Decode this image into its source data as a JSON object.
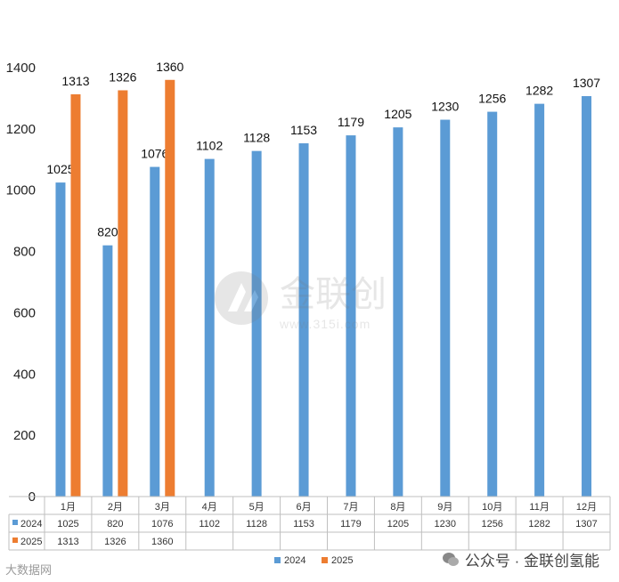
{
  "chart_data": {
    "type": "bar",
    "categories": [
      "1月",
      "2月",
      "3月",
      "4月",
      "5月",
      "6月",
      "7月",
      "8月",
      "9月",
      "10月",
      "11月",
      "12月"
    ],
    "series": [
      {
        "name": "2024",
        "values": [
          1025,
          820,
          1076,
          1102,
          1128,
          1153,
          1179,
          1205,
          1230,
          1256,
          1282,
          1307
        ],
        "color": "#5b9bd5"
      },
      {
        "name": "2025",
        "values": [
          1313,
          1326,
          1360,
          null,
          null,
          null,
          null,
          null,
          null,
          null,
          null,
          null
        ],
        "color": "#ed7d31"
      }
    ],
    "yticks": [
      0,
      200,
      400,
      600,
      800,
      1000,
      1200,
      1400
    ],
    "ylim": [
      0,
      1400
    ],
    "grid": false,
    "data_table": true,
    "legend_position": "bottom"
  },
  "watermarks": {
    "center_brand": "金联创",
    "center_url": "www.315i.com",
    "bottom_left": "大数据网",
    "bottom_right": "公众号 · 金联创氢能",
    "wechat_icon": "wechat-icon"
  }
}
